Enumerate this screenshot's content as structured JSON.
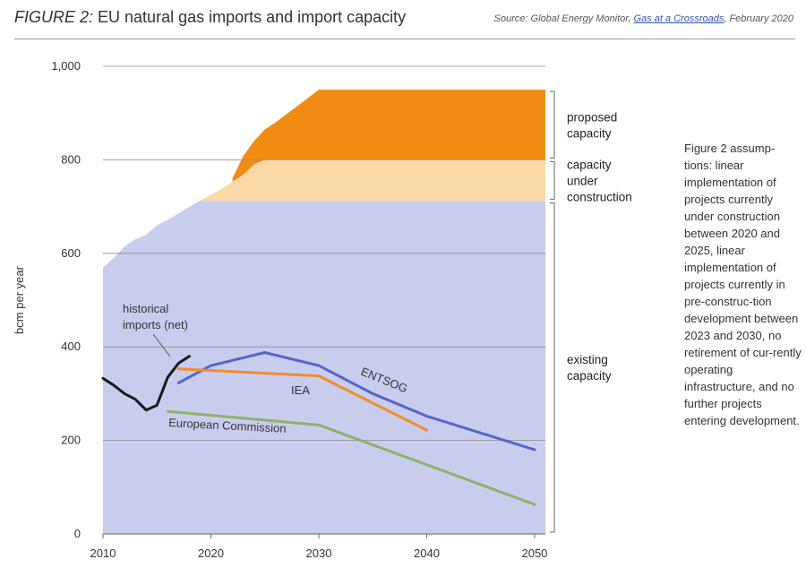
{
  "figure": {
    "number_label": "FIGURE 2:",
    "title": "EU natural gas imports and import capacity",
    "source_prefix": "Source: Global Energy Monitor, ",
    "source_link": "Gas at a Crossroads",
    "source_suffix": ", February 2020"
  },
  "assumptions_note": "Figure 2 assump-tions: linear implementation of projects currently under construction between 2020 and 2025, linear implementation of projects currently in pre-construc-tion development between 2023 and 2030, no retirement of cur-rently operating infrastructure, and no further projects entering development.",
  "chart_data": {
    "type": "area",
    "title": "EU natural gas imports and import capacity",
    "ylabel": "bcm per year",
    "xlim": [
      2010,
      2051
    ],
    "ylim": [
      0,
      1000
    ],
    "x_ticks": [
      2010,
      2020,
      2030,
      2040,
      2050
    ],
    "y_ticks": [
      0,
      200,
      400,
      600,
      800,
      1000
    ],
    "y_tick_labels": [
      "0",
      "200",
      "400",
      "600",
      "800",
      "1,000"
    ],
    "grid": true,
    "capacity_bands": {
      "existing": {
        "label": "existing capacity",
        "color": "#c8cdee",
        "points": [
          [
            2010,
            570
          ],
          [
            2011,
            590
          ],
          [
            2012,
            615
          ],
          [
            2013,
            630
          ],
          [
            2014,
            640
          ],
          [
            2015,
            660
          ],
          [
            2016,
            672
          ],
          [
            2017,
            685
          ],
          [
            2018,
            700
          ],
          [
            2019,
            712
          ],
          [
            2051,
            712
          ]
        ]
      },
      "under_construction": {
        "label": "capacity under construction",
        "color": "#fad8a8",
        "points": [
          [
            2019,
            712
          ],
          [
            2021,
            738
          ],
          [
            2023,
            768
          ],
          [
            2024,
            790
          ],
          [
            2025,
            800
          ],
          [
            2051,
            800
          ]
        ]
      },
      "proposed": {
        "label": "proposed capacity",
        "color": "#f08c14",
        "points": [
          [
            2022,
            760
          ],
          [
            2023,
            808
          ],
          [
            2024,
            840
          ],
          [
            2025,
            865
          ],
          [
            2026,
            880
          ],
          [
            2028,
            915
          ],
          [
            2030,
            950
          ],
          [
            2051,
            950
          ]
        ]
      }
    },
    "bracket_labels": [
      {
        "key": "proposed",
        "lines": [
          "proposed",
          "capacity"
        ]
      },
      {
        "key": "under_construction",
        "lines": [
          "capacity",
          "under",
          "construction"
        ]
      },
      {
        "key": "existing",
        "lines": [
          "existing",
          "capacity"
        ]
      }
    ],
    "series": [
      {
        "name": "historical imports (net)",
        "label_lines": [
          "historical",
          "imports (net)"
        ],
        "color": "#1a1a1a",
        "points": [
          [
            2010,
            333
          ],
          [
            2011,
            318
          ],
          [
            2012,
            300
          ],
          [
            2013,
            288
          ],
          [
            2014,
            265
          ],
          [
            2015,
            275
          ],
          [
            2016,
            335
          ],
          [
            2017,
            365
          ],
          [
            2018,
            380
          ]
        ]
      },
      {
        "name": "ENTSOG",
        "color": "#5664c8",
        "points": [
          [
            2017,
            323
          ],
          [
            2020,
            360
          ],
          [
            2025,
            388
          ],
          [
            2030,
            360
          ],
          [
            2035,
            300
          ],
          [
            2040,
            252
          ],
          [
            2050,
            180
          ]
        ]
      },
      {
        "name": "IEA",
        "color": "#f08c28",
        "points": [
          [
            2017,
            353
          ],
          [
            2030,
            338
          ],
          [
            2040,
            222
          ]
        ]
      },
      {
        "name": "European Commission",
        "color": "#8cb26a",
        "points": [
          [
            2016,
            262
          ],
          [
            2030,
            233
          ],
          [
            2050,
            63
          ]
        ]
      }
    ]
  }
}
